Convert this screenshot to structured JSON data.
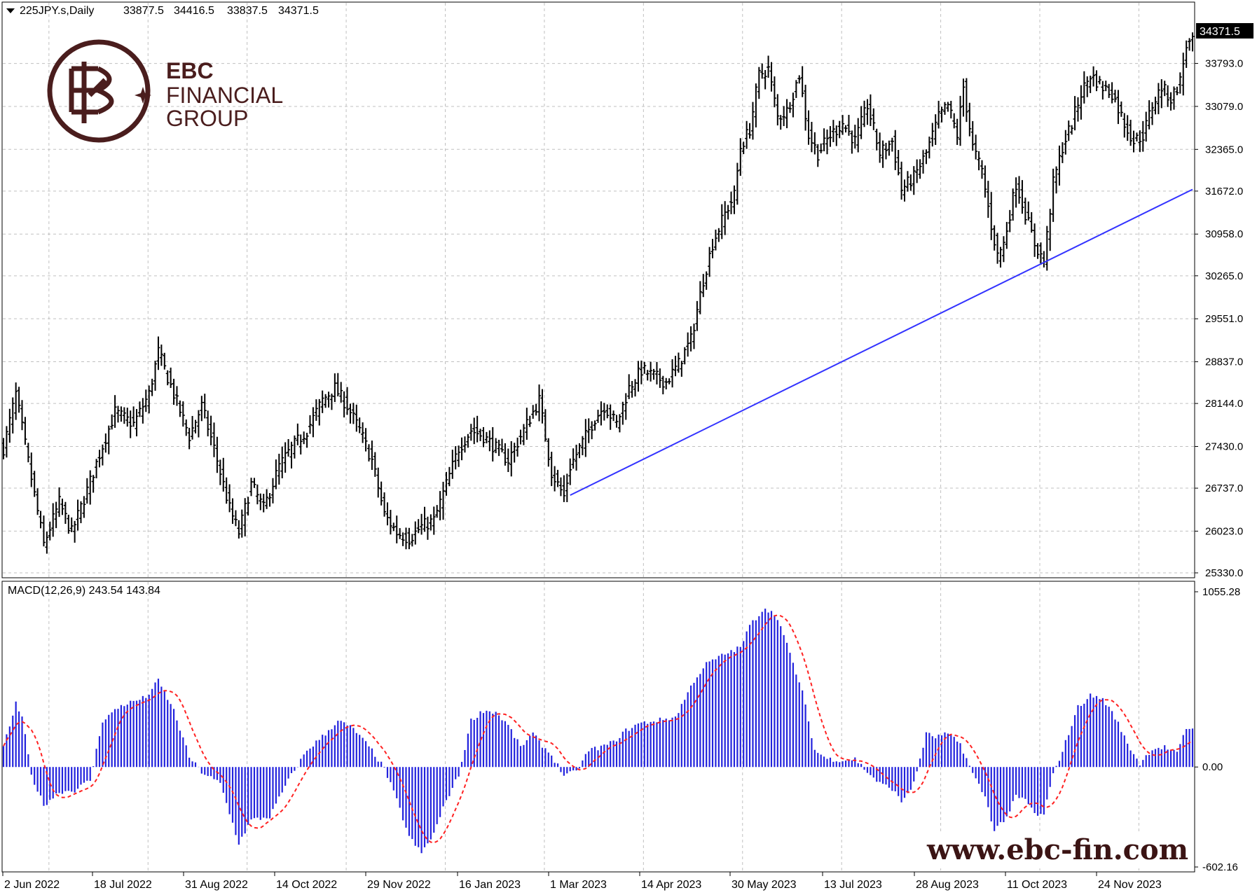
{
  "header": {
    "symbol": "225JPY.s,Daily",
    "ohlc": [
      "33877.5",
      "34416.5",
      "33837.5",
      "34371.5"
    ]
  },
  "logo": {
    "line1": "EBC",
    "line2": "FINANCIAL",
    "line3": "GROUP"
  },
  "watermark_url": "www.ebc-fin.com",
  "colors": {
    "bars": "#000000",
    "trendline": "#3333ff",
    "histogram": "#2222dd",
    "signal": "#ff2222",
    "grid": "#c0c0c0",
    "current_price_bg": "#000000"
  },
  "chart_data": [
    {
      "type": "bar",
      "subtype": "ohlc",
      "series": [
        {
          "name": "225JPY.s,Daily"
        }
      ],
      "ylim": [
        25330.0,
        34486.0
      ],
      "y_ticks": [
        "34371.5",
        "33793.0",
        "33079.0",
        "32365.0",
        "31672.0",
        "30958.0",
        "30265.0",
        "29551.0",
        "28837.0",
        "28144.0",
        "27430.0",
        "26737.0",
        "26023.0",
        "25330.0"
      ],
      "current_price": "34371.5",
      "x_ticks": [
        "2 Jun 2022",
        "18 Jul 2022",
        "31 Aug 2022",
        "14 Oct 2022",
        "29 Nov 2022",
        "16 Jan 2023",
        "1 Mar 2023",
        "14 Apr 2023",
        "30 May 2023",
        "13 Jul 2023",
        "28 Aug 2023",
        "11 Oct 2023",
        "24 Nov 2023"
      ],
      "anchors": [
        [
          0,
          27400
        ],
        [
          4,
          28300
        ],
        [
          9,
          26900
        ],
        [
          13,
          25800
        ],
        [
          18,
          26500
        ],
        [
          22,
          26000
        ],
        [
          27,
          26700
        ],
        [
          31,
          27300
        ],
        [
          36,
          28000
        ],
        [
          42,
          27800
        ],
        [
          47,
          28300
        ],
        [
          50,
          29000
        ],
        [
          55,
          28300
        ],
        [
          60,
          27600
        ],
        [
          64,
          28100
        ],
        [
          68,
          27400
        ],
        [
          73,
          26400
        ],
        [
          76,
          26000
        ],
        [
          80,
          26800
        ],
        [
          84,
          26400
        ],
        [
          89,
          27100
        ],
        [
          93,
          27400
        ],
        [
          98,
          27700
        ],
        [
          103,
          28200
        ],
        [
          107,
          28400
        ],
        [
          111,
          28100
        ],
        [
          115,
          27700
        ],
        [
          119,
          27200
        ],
        [
          123,
          26300
        ],
        [
          127,
          26000
        ],
        [
          131,
          25900
        ],
        [
          135,
          26100
        ],
        [
          139,
          26200
        ],
        [
          143,
          26800
        ],
        [
          147,
          27400
        ],
        [
          151,
          27700
        ],
        [
          155,
          27600
        ],
        [
          159,
          27400
        ],
        [
          163,
          27200
        ],
        [
          167,
          27600
        ],
        [
          171,
          28000
        ],
        [
          173,
          28200
        ],
        [
          177,
          27000
        ],
        [
          181,
          26600
        ],
        [
          183,
          27100
        ],
        [
          187,
          27500
        ],
        [
          191,
          27900
        ],
        [
          194,
          28100
        ],
        [
          198,
          27800
        ],
        [
          202,
          28400
        ],
        [
          206,
          28700
        ],
        [
          210,
          28600
        ],
        [
          214,
          28500
        ],
        [
          218,
          28800
        ],
        [
          222,
          29200
        ],
        [
          226,
          30200
        ],
        [
          229,
          30800
        ],
        [
          233,
          31300
        ],
        [
          236,
          31600
        ],
        [
          238,
          32400
        ],
        [
          241,
          32700
        ],
        [
          244,
          33600
        ],
        [
          247,
          33700
        ],
        [
          250,
          32900
        ],
        [
          253,
          33000
        ],
        [
          257,
          33600
        ],
        [
          260,
          32600
        ],
        [
          263,
          32300
        ],
        [
          267,
          32600
        ],
        [
          271,
          32800
        ],
        [
          275,
          32500
        ],
        [
          279,
          33100
        ],
        [
          283,
          32300
        ],
        [
          287,
          32500
        ],
        [
          290,
          31700
        ],
        [
          294,
          31900
        ],
        [
          298,
          32300
        ],
        [
          302,
          32900
        ],
        [
          305,
          33100
        ],
        [
          308,
          32600
        ],
        [
          310,
          33400
        ],
        [
          313,
          32400
        ],
        [
          316,
          32000
        ],
        [
          319,
          31100
        ],
        [
          321,
          30600
        ],
        [
          323,
          30800
        ],
        [
          327,
          31800
        ],
        [
          330,
          31300
        ],
        [
          333,
          30800
        ],
        [
          336,
          30500
        ],
        [
          339,
          31800
        ],
        [
          342,
          32400
        ],
        [
          345,
          32800
        ],
        [
          348,
          33300
        ],
        [
          351,
          33600
        ],
        [
          355,
          33400
        ],
        [
          358,
          33300
        ],
        [
          362,
          32800
        ],
        [
          365,
          32500
        ],
        [
          368,
          32600
        ],
        [
          371,
          33100
        ],
        [
          374,
          33400
        ],
        [
          377,
          33200
        ],
        [
          380,
          33500
        ],
        [
          382,
          34100
        ]
      ],
      "annotations": [
        {
          "type": "trendline",
          "from": [
            183,
            26620
          ],
          "to": [
            384,
            31700
          ]
        }
      ]
    },
    {
      "type": "bar",
      "subtype": "macd_histogram_with_signal",
      "title": "MACD(12,26,9) 243.54 143.84",
      "series": [
        {
          "name": "MACD"
        },
        {
          "name": "Signal"
        }
      ],
      "ylim": [
        -602.16,
        1055.28
      ],
      "y_ticks": [
        "1055.28",
        "0.00",
        "-602.16"
      ],
      "current_values": {
        "macd": 243.54,
        "signal": 143.84
      },
      "anchors": [
        [
          0,
          120
        ],
        [
          4,
          380
        ],
        [
          6,
          300
        ],
        [
          9,
          -50
        ],
        [
          13,
          -230
        ],
        [
          18,
          -150
        ],
        [
          23,
          -140
        ],
        [
          28,
          -80
        ],
        [
          32,
          280
        ],
        [
          38,
          370
        ],
        [
          46,
          420
        ],
        [
          50,
          520
        ],
        [
          55,
          340
        ],
        [
          60,
          60
        ],
        [
          64,
          -30
        ],
        [
          70,
          -100
        ],
        [
          76,
          -460
        ],
        [
          80,
          -320
        ],
        [
          86,
          -300
        ],
        [
          92,
          -80
        ],
        [
          98,
          100
        ],
        [
          104,
          200
        ],
        [
          108,
          280
        ],
        [
          113,
          230
        ],
        [
          119,
          100
        ],
        [
          123,
          -10
        ],
        [
          127,
          -200
        ],
        [
          131,
          -420
        ],
        [
          135,
          -520
        ],
        [
          139,
          -400
        ],
        [
          143,
          -200
        ],
        [
          147,
          -50
        ],
        [
          151,
          280
        ],
        [
          155,
          340
        ],
        [
          159,
          330
        ],
        [
          163,
          250
        ],
        [
          167,
          120
        ],
        [
          171,
          200
        ],
        [
          173,
          150
        ],
        [
          177,
          70
        ],
        [
          181,
          -50
        ],
        [
          185,
          -30
        ],
        [
          189,
          100
        ],
        [
          193,
          120
        ],
        [
          197,
          150
        ],
        [
          201,
          220
        ],
        [
          205,
          260
        ],
        [
          211,
          280
        ],
        [
          217,
          300
        ],
        [
          223,
          520
        ],
        [
          227,
          620
        ],
        [
          233,
          680
        ],
        [
          238,
          720
        ],
        [
          241,
          850
        ],
        [
          244,
          920
        ],
        [
          246,
          960
        ],
        [
          250,
          900
        ],
        [
          254,
          680
        ],
        [
          258,
          450
        ],
        [
          262,
          100
        ],
        [
          266,
          50
        ],
        [
          271,
          40
        ],
        [
          275,
          50
        ],
        [
          279,
          -30
        ],
        [
          283,
          -100
        ],
        [
          287,
          -130
        ],
        [
          290,
          -210
        ],
        [
          294,
          -100
        ],
        [
          298,
          200
        ],
        [
          301,
          180
        ],
        [
          305,
          200
        ],
        [
          309,
          140
        ],
        [
          313,
          -40
        ],
        [
          317,
          -180
        ],
        [
          320,
          -380
        ],
        [
          324,
          -300
        ],
        [
          327,
          -180
        ],
        [
          330,
          -200
        ],
        [
          334,
          -300
        ],
        [
          336,
          -280
        ],
        [
          339,
          -50
        ],
        [
          343,
          150
        ],
        [
          347,
          360
        ],
        [
          351,
          430
        ],
        [
          355,
          410
        ],
        [
          359,
          300
        ],
        [
          363,
          140
        ],
        [
          367,
          20
        ],
        [
          371,
          110
        ],
        [
          375,
          120
        ],
        [
          379,
          80
        ],
        [
          382,
          233
        ]
      ]
    }
  ]
}
